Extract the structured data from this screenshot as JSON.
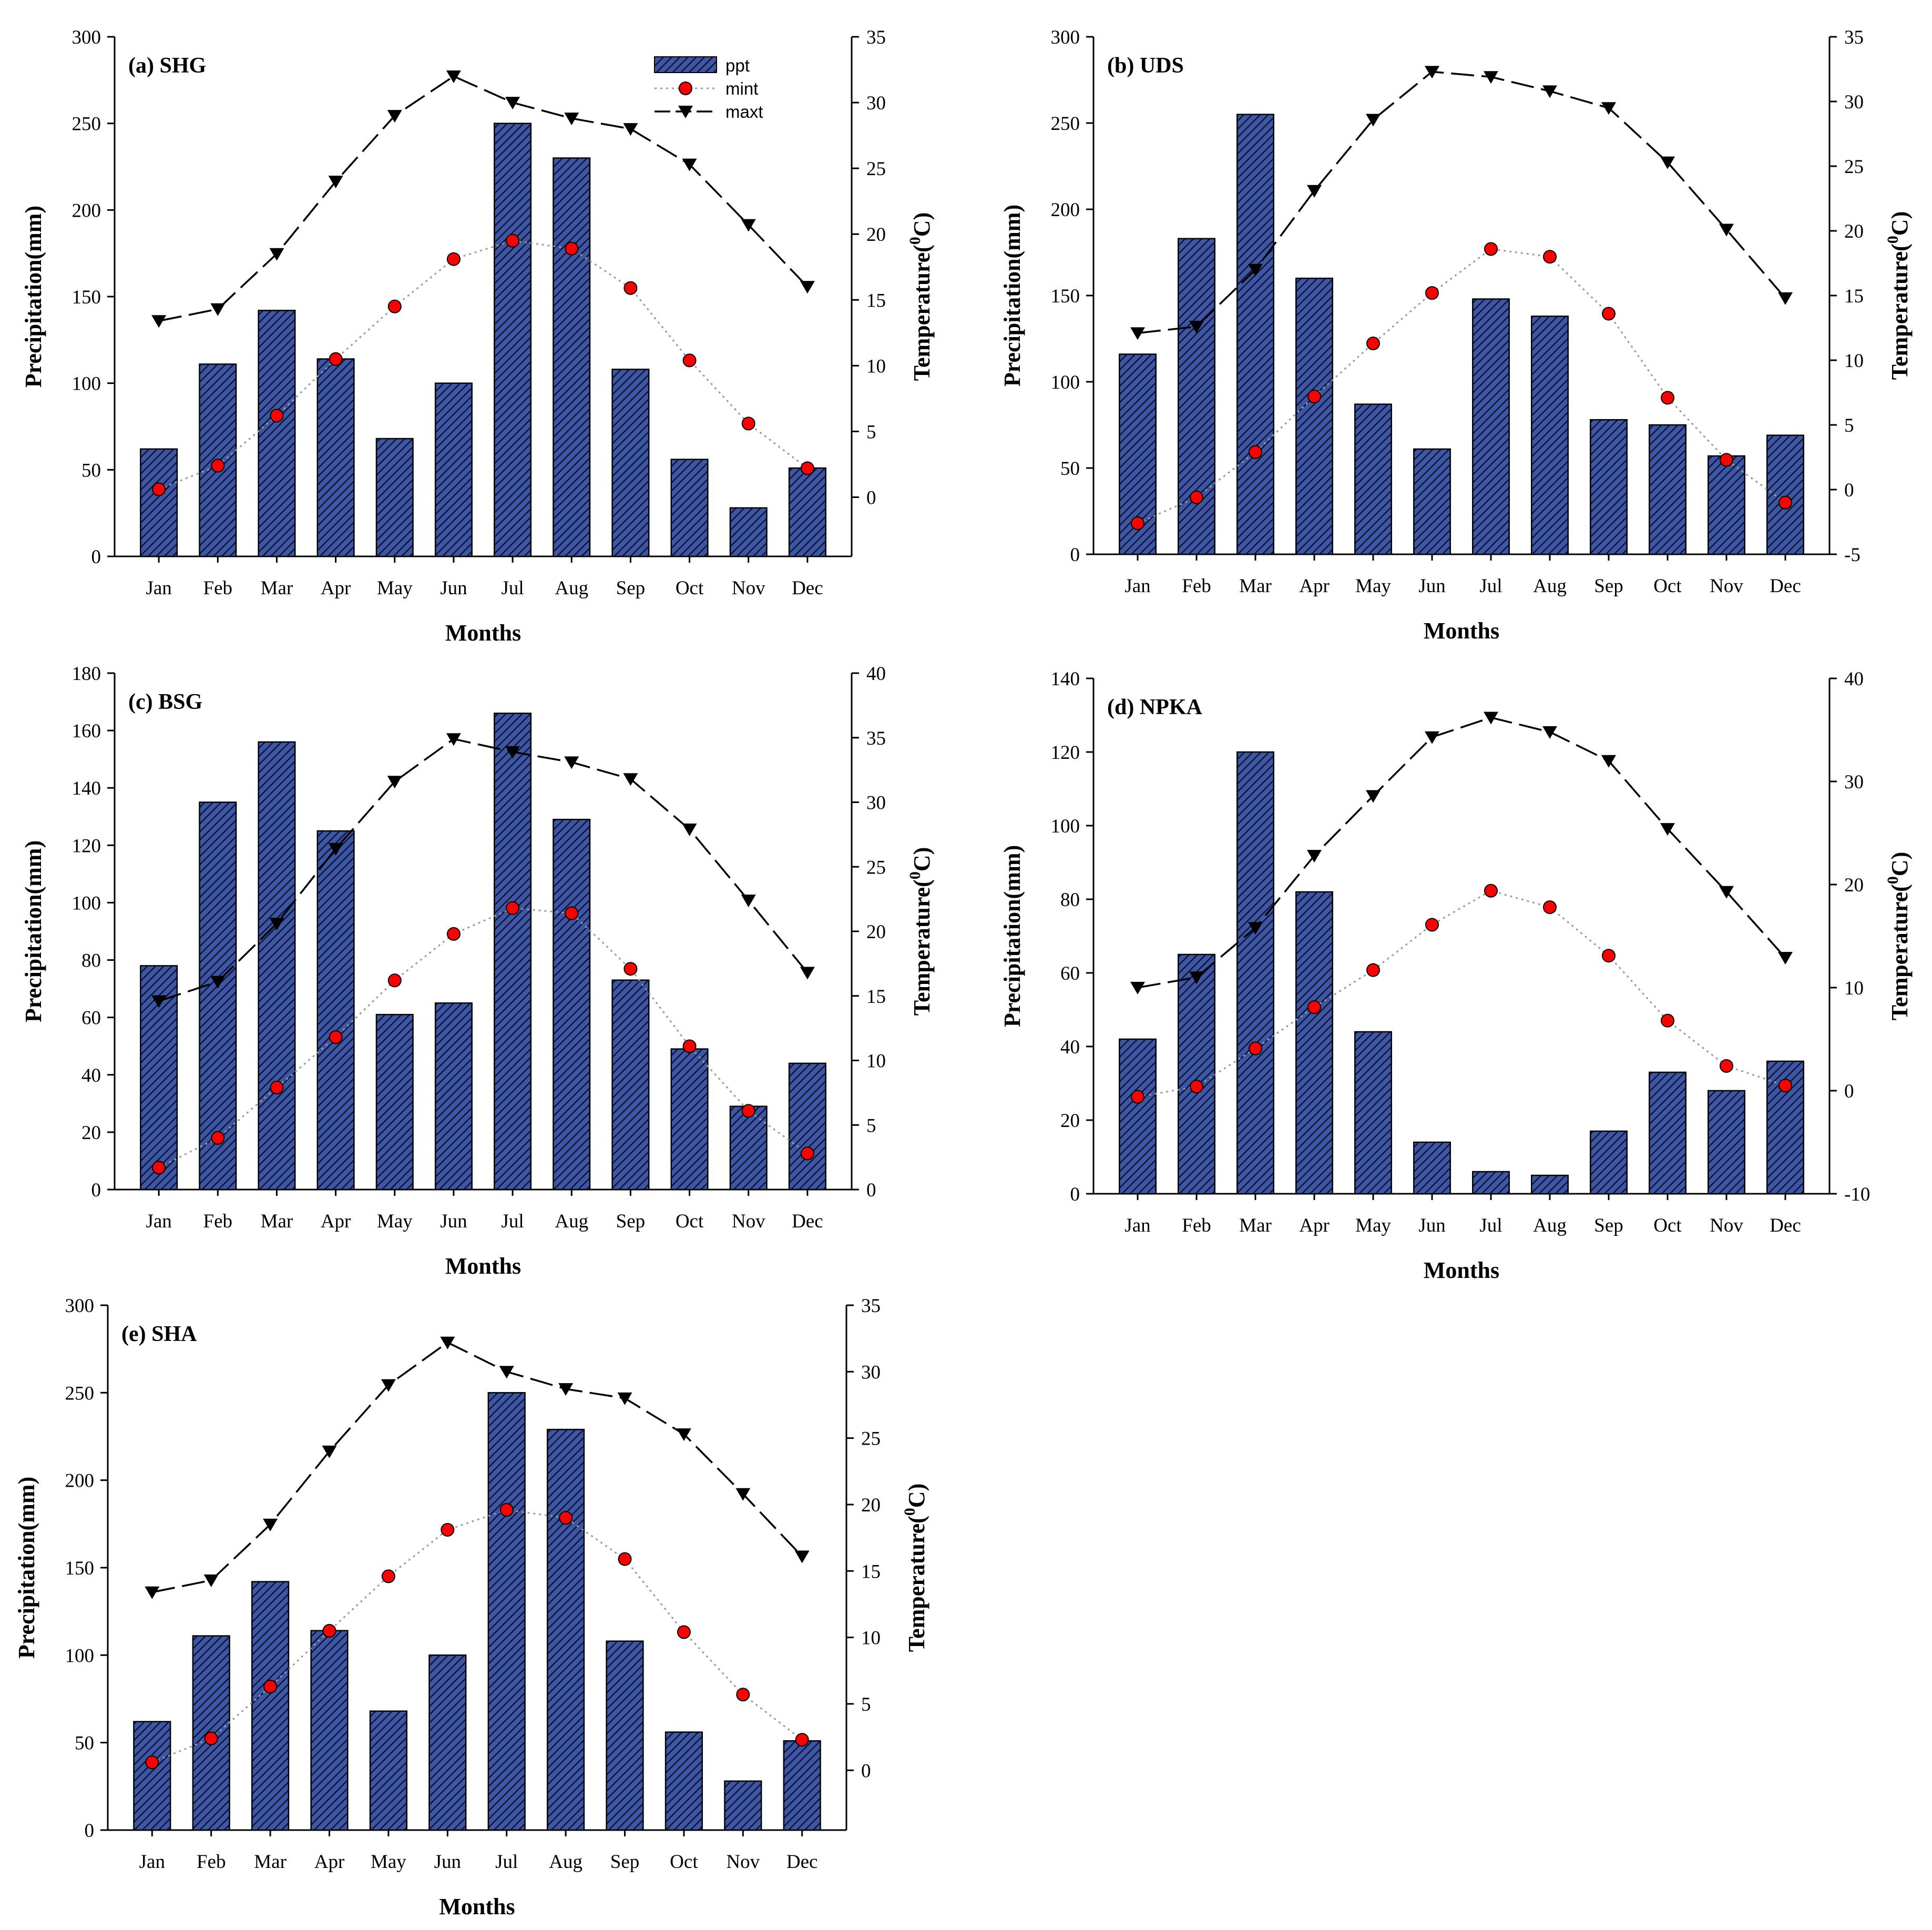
{
  "chart_data": [
    {
      "type": "bar",
      "panel_label": "(a) SHG",
      "categories": [
        "Jan",
        "Feb",
        "Mar",
        "Apr",
        "May",
        "Jun",
        "Jul",
        "Aug",
        "Sep",
        "Oct",
        "Nov",
        "Dec"
      ],
      "xlabel": "Months",
      "ylabel_left": "Precipitation(mm)",
      "ylabel_right_prefix": "Temperature(",
      "ylabel_right_sup": "0",
      "ylabel_right_suffix": "C)",
      "ylim_left": [
        0,
        300
      ],
      "yticks_left": [
        0,
        50,
        100,
        150,
        200,
        250,
        300
      ],
      "ylim_right": [
        -4.5,
        35
      ],
      "yticks_right": [
        0,
        5,
        10,
        15,
        20,
        25,
        30,
        35
      ],
      "legend": {
        "placement": "top-right",
        "entries": [
          "ppt",
          "mint",
          "maxt"
        ]
      },
      "series": [
        {
          "name": "ppt",
          "type": "bar",
          "axis": "left",
          "values": [
            62,
            111,
            142,
            114,
            68,
            100,
            250,
            230,
            108,
            56,
            28,
            51
          ]
        },
        {
          "name": "mint",
          "type": "line",
          "axis": "right",
          "values": [
            0.6,
            2.4,
            6.2,
            10.5,
            14.5,
            18.1,
            19.5,
            18.9,
            15.9,
            10.4,
            5.6,
            2.2
          ]
        },
        {
          "name": "maxt",
          "type": "line",
          "axis": "right",
          "values": [
            13.4,
            14.3,
            18.5,
            24.0,
            29.0,
            32.0,
            30.0,
            28.8,
            28.0,
            25.3,
            20.7,
            16.0
          ]
        }
      ]
    },
    {
      "type": "bar",
      "panel_label": "(b) UDS",
      "categories": [
        "Jan",
        "Feb",
        "Mar",
        "Apr",
        "May",
        "Jun",
        "Jul",
        "Aug",
        "Sep",
        "Oct",
        "Nov",
        "Dec"
      ],
      "xlabel": "Months",
      "ylabel_left": "Precipitation(mm)",
      "ylabel_right_prefix": "Temperature(",
      "ylabel_right_sup": "0",
      "ylabel_right_suffix": "C)",
      "ylim_left": [
        0,
        300
      ],
      "yticks_left": [
        0,
        50,
        100,
        150,
        200,
        250,
        300
      ],
      "ylim_right": [
        -5,
        35
      ],
      "yticks_right": [
        -5,
        0,
        5,
        10,
        15,
        20,
        25,
        30,
        35
      ],
      "series": [
        {
          "name": "ppt",
          "type": "bar",
          "axis": "left",
          "values": [
            116,
            183,
            255,
            160,
            87,
            61,
            148,
            138,
            78,
            75,
            57,
            69
          ]
        },
        {
          "name": "mint",
          "type": "line",
          "axis": "right",
          "values": [
            -2.6,
            -0.6,
            2.9,
            7.2,
            11.3,
            15.2,
            18.6,
            18.0,
            13.6,
            7.1,
            2.3,
            -1.0
          ]
        },
        {
          "name": "maxt",
          "type": "line",
          "axis": "right",
          "values": [
            12.1,
            12.6,
            17.0,
            23.1,
            28.6,
            32.3,
            31.9,
            30.8,
            29.5,
            25.3,
            20.1,
            14.8
          ]
        }
      ]
    },
    {
      "type": "bar",
      "panel_label": "(c) BSG",
      "categories": [
        "Jan",
        "Feb",
        "Mar",
        "Apr",
        "May",
        "Jun",
        "Jul",
        "Aug",
        "Sep",
        "Oct",
        "Nov",
        "Dec"
      ],
      "xlabel": "Months",
      "ylabel_left": "Precipitation(mm)",
      "ylabel_right_prefix": "Temperature(",
      "ylabel_right_sup": "0",
      "ylabel_right_suffix": "C)",
      "ylim_left": [
        0,
        180
      ],
      "yticks_left": [
        0,
        20,
        40,
        60,
        80,
        100,
        120,
        140,
        160,
        180
      ],
      "ylim_right": [
        0,
        40
      ],
      "yticks_right": [
        0,
        5,
        10,
        15,
        20,
        25,
        30,
        35,
        40
      ],
      "series": [
        {
          "name": "ppt",
          "type": "bar",
          "axis": "left",
          "values": [
            78,
            135,
            156,
            125,
            61,
            65,
            166,
            129,
            73,
            49,
            29,
            44
          ]
        },
        {
          "name": "mint",
          "type": "line",
          "axis": "right",
          "values": [
            1.7,
            4.0,
            7.9,
            11.8,
            16.2,
            19.8,
            21.8,
            21.4,
            17.1,
            11.1,
            6.1,
            2.8
          ]
        },
        {
          "name": "maxt",
          "type": "line",
          "axis": "right",
          "values": [
            14.6,
            16.1,
            20.6,
            26.4,
            31.6,
            34.9,
            33.9,
            33.1,
            31.8,
            27.9,
            22.4,
            16.8
          ]
        }
      ]
    },
    {
      "type": "bar",
      "panel_label": "(d) NPKA",
      "categories": [
        "Jan",
        "Feb",
        "Mar",
        "Apr",
        "May",
        "Jun",
        "Jul",
        "Aug",
        "Sep",
        "Oct",
        "Nov",
        "Dec"
      ],
      "xlabel": "Months",
      "ylabel_left": "Precipitation(mm)",
      "ylabel_right_prefix": "Temperature(",
      "ylabel_right_sup": "0",
      "ylabel_right_suffix": "C)",
      "ylim_left": [
        0,
        140
      ],
      "yticks_left": [
        0,
        20,
        40,
        60,
        80,
        100,
        120,
        140
      ],
      "ylim_right": [
        -10,
        40
      ],
      "yticks_right": [
        -10,
        0,
        10,
        20,
        30,
        40
      ],
      "series": [
        {
          "name": "ppt",
          "type": "bar",
          "axis": "left",
          "values": [
            42,
            65,
            120,
            82,
            44,
            14,
            6,
            5,
            17,
            33,
            28,
            36
          ]
        },
        {
          "name": "mint",
          "type": "line",
          "axis": "right",
          "values": [
            -0.6,
            0.4,
            4.1,
            8.1,
            11.7,
            16.1,
            19.4,
            17.8,
            13.1,
            6.8,
            2.4,
            0.5
          ]
        },
        {
          "name": "maxt",
          "type": "line",
          "axis": "right",
          "values": [
            10.0,
            11.0,
            15.8,
            22.8,
            28.6,
            34.3,
            36.2,
            34.8,
            32.0,
            25.4,
            19.3,
            12.9
          ]
        }
      ]
    },
    {
      "type": "bar",
      "panel_label": "(e) SHA",
      "categories": [
        "Jan",
        "Feb",
        "Mar",
        "Apr",
        "May",
        "Jun",
        "Jul",
        "Aug",
        "Sep",
        "Oct",
        "Nov",
        "Dec"
      ],
      "xlabel": "Months",
      "ylabel_left": "Precipitation(mm)",
      "ylabel_right_prefix": "Temperature(",
      "ylabel_right_sup": "0",
      "ylabel_right_suffix": "C)",
      "ylim_left": [
        0,
        300
      ],
      "yticks_left": [
        0,
        50,
        100,
        150,
        200,
        250,
        300
      ],
      "ylim_right": [
        -4.5,
        35
      ],
      "yticks_right": [
        0,
        5,
        10,
        15,
        20,
        25,
        30,
        35
      ],
      "series": [
        {
          "name": "ppt",
          "type": "bar",
          "axis": "left",
          "values": [
            62,
            111,
            142,
            114,
            68,
            100,
            250,
            229,
            108,
            56,
            28,
            51
          ]
        },
        {
          "name": "mint",
          "type": "line",
          "axis": "right",
          "values": [
            0.6,
            2.4,
            6.3,
            10.5,
            14.6,
            18.1,
            19.6,
            19.0,
            15.9,
            10.4,
            5.7,
            2.3
          ]
        },
        {
          "name": "maxt",
          "type": "line",
          "axis": "right",
          "values": [
            13.4,
            14.3,
            18.5,
            24.0,
            29.0,
            32.2,
            30.0,
            28.7,
            28.0,
            25.3,
            20.8,
            16.1
          ]
        }
      ]
    }
  ],
  "colors": {
    "bar_fill": "#3d57a6",
    "bar_hatch": "#0d1530",
    "bar_edge": "#000000",
    "mint_marker": "#ff0000",
    "mint_line": "#9a9a9a",
    "maxt": "#000000",
    "axis": "#000000"
  }
}
